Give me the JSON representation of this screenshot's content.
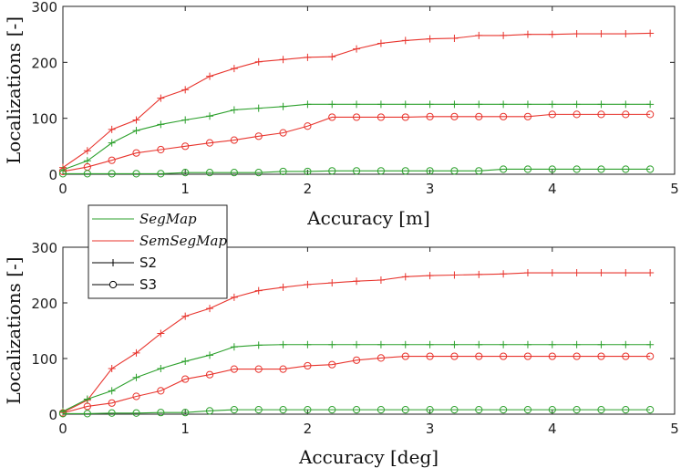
{
  "legend": {
    "items": [
      {
        "label": "SegMap",
        "color": "#2ca02c",
        "marker": "none",
        "italic": true
      },
      {
        "label": "SemSegMap",
        "color": "#e8352e",
        "marker": "none",
        "italic": true
      },
      {
        "label": "S2",
        "color": "#000000",
        "marker": "plus",
        "italic": false
      },
      {
        "label": "S3",
        "color": "#000000",
        "marker": "circle",
        "italic": false
      }
    ]
  },
  "chart_data": [
    {
      "type": "line",
      "xlabel": "Accuracy [m]",
      "ylabel": "Localizations [-]",
      "xlim": [
        0,
        5
      ],
      "ylim": [
        0,
        300
      ],
      "xticks": [
        0,
        1,
        2,
        3,
        4,
        5
      ],
      "yticks": [
        0,
        100,
        200,
        300
      ],
      "x": [
        0,
        0.2,
        0.4,
        0.6,
        0.8,
        1.0,
        1.2,
        1.4,
        1.6,
        1.8,
        2.0,
        2.2,
        2.4,
        2.6,
        2.8,
        3.0,
        3.2,
        3.4,
        3.6,
        3.8,
        4.0,
        4.2,
        4.4,
        4.6,
        4.8
      ],
      "series": [
        {
          "method": "SemSegMap",
          "set": "S2",
          "color": "#e8352e",
          "marker": "plus",
          "values": [
            12,
            42,
            80,
            97,
            136,
            151,
            175,
            189,
            201,
            205,
            209,
            210,
            224,
            234,
            239,
            242,
            243,
            248,
            248,
            250,
            250,
            251,
            251,
            251,
            252
          ]
        },
        {
          "method": "SegMap",
          "set": "S2",
          "color": "#2ca02c",
          "marker": "plus",
          "values": [
            8,
            24,
            56,
            78,
            89,
            97,
            104,
            115,
            118,
            121,
            125,
            125,
            125,
            125,
            125,
            125,
            125,
            125,
            125,
            125,
            125,
            125,
            125,
            125,
            125
          ]
        },
        {
          "method": "SemSegMap",
          "set": "S3",
          "color": "#e8352e",
          "marker": "circle",
          "values": [
            5,
            13,
            25,
            38,
            44,
            50,
            56,
            61,
            68,
            74,
            86,
            102,
            102,
            102,
            102,
            103,
            103,
            103,
            103,
            103,
            107,
            107,
            107,
            107,
            107
          ]
        },
        {
          "method": "SegMap",
          "set": "S3",
          "color": "#2ca02c",
          "marker": "circle",
          "values": [
            1,
            1,
            1,
            1,
            1,
            3,
            3,
            3,
            3,
            5,
            5,
            6,
            6,
            6,
            6,
            6,
            6,
            6,
            9,
            9,
            9,
            9,
            9,
            9,
            9
          ]
        }
      ]
    },
    {
      "type": "line",
      "xlabel": "Accuracy [deg]",
      "ylabel": "Localizations [-]",
      "xlim": [
        0,
        5
      ],
      "ylim": [
        0,
        300
      ],
      "xticks": [
        0,
        1,
        2,
        3,
        4,
        5
      ],
      "yticks": [
        0,
        100,
        200,
        300
      ],
      "x": [
        0,
        0.2,
        0.4,
        0.6,
        0.8,
        1.0,
        1.2,
        1.4,
        1.6,
        1.8,
        2.0,
        2.2,
        2.4,
        2.6,
        2.8,
        3.0,
        3.2,
        3.4,
        3.6,
        3.8,
        4.0,
        4.2,
        4.4,
        4.6,
        4.8
      ],
      "series": [
        {
          "method": "SemSegMap",
          "set": "S2",
          "color": "#e8352e",
          "marker": "plus",
          "values": [
            3,
            25,
            82,
            110,
            145,
            176,
            190,
            210,
            222,
            228,
            233,
            236,
            239,
            241,
            247,
            249,
            250,
            251,
            252,
            254,
            254,
            254,
            254,
            254,
            254
          ]
        },
        {
          "method": "SegMap",
          "set": "S2",
          "color": "#2ca02c",
          "marker": "plus",
          "values": [
            5,
            27,
            42,
            66,
            82,
            95,
            106,
            121,
            124,
            125,
            125,
            125,
            125,
            125,
            125,
            125,
            125,
            125,
            125,
            125,
            125,
            125,
            125,
            125,
            125
          ]
        },
        {
          "method": "SemSegMap",
          "set": "S3",
          "color": "#e8352e",
          "marker": "circle",
          "values": [
            2,
            14,
            20,
            32,
            42,
            63,
            71,
            81,
            81,
            81,
            87,
            89,
            97,
            101,
            104,
            104,
            104,
            104,
            104,
            104,
            104,
            104,
            104,
            104,
            104
          ]
        },
        {
          "method": "SegMap",
          "set": "S3",
          "color": "#2ca02c",
          "marker": "circle",
          "values": [
            1,
            1,
            2,
            2,
            3,
            3,
            6,
            8,
            8,
            8,
            8,
            8,
            8,
            8,
            8,
            8,
            8,
            8,
            8,
            8,
            8,
            8,
            8,
            8,
            8
          ]
        }
      ]
    }
  ]
}
